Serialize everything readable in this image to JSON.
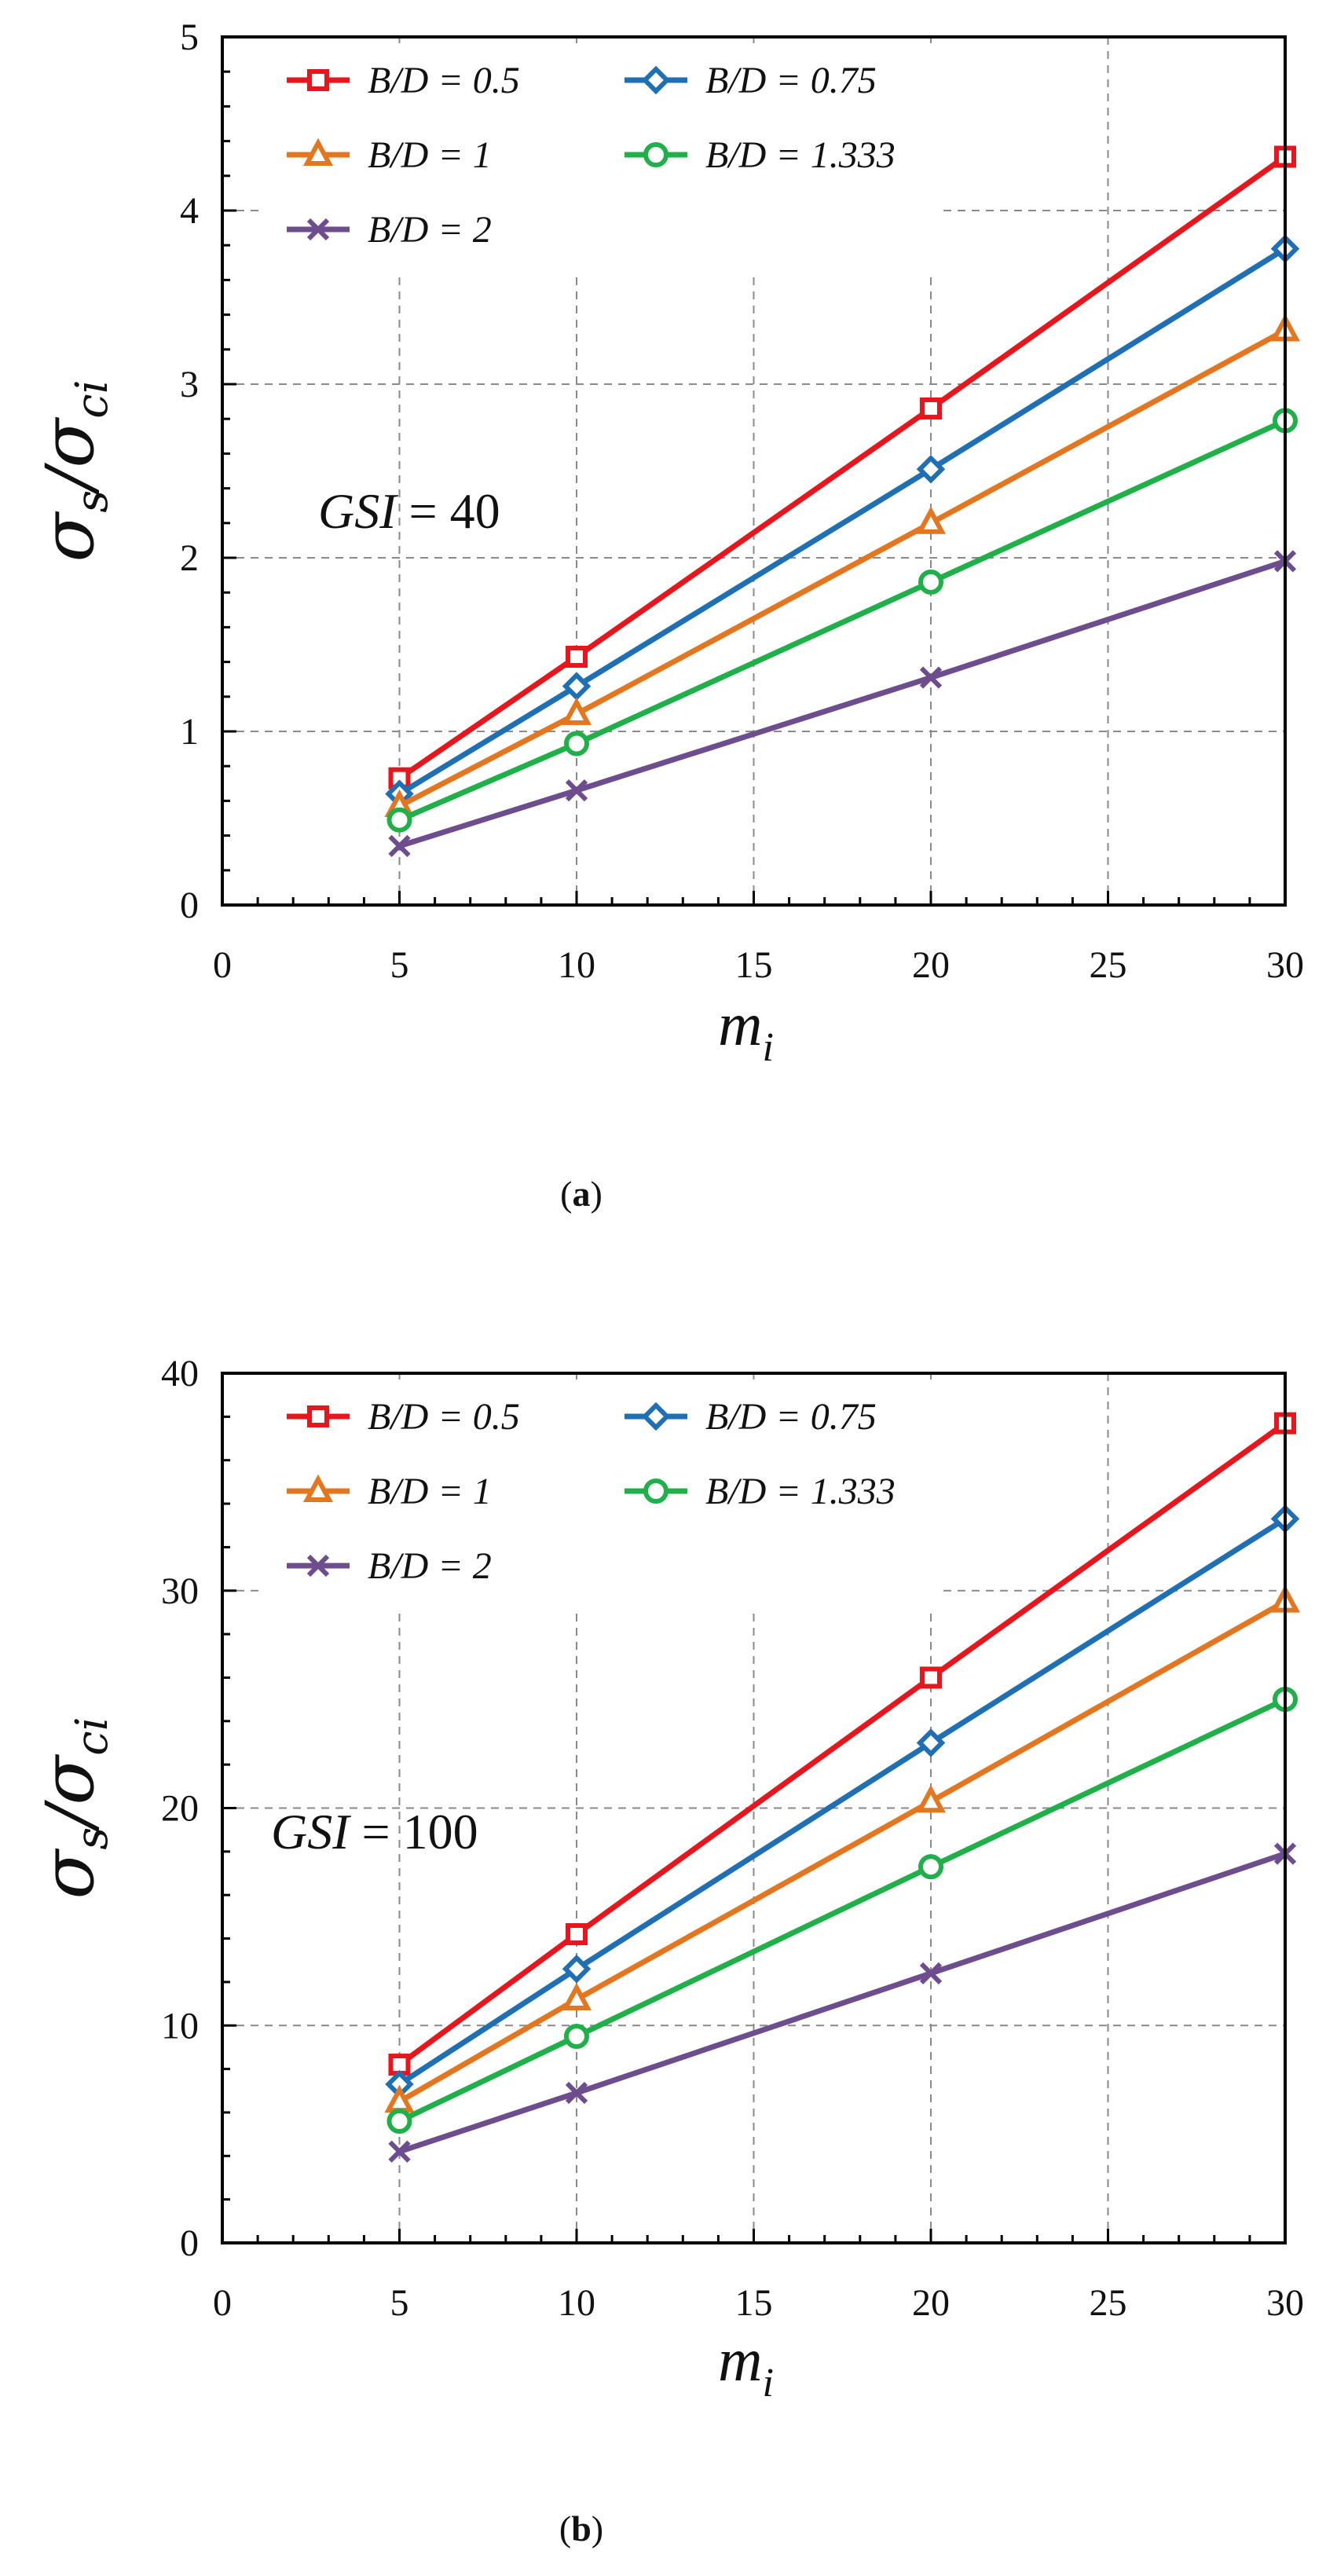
{
  "chart_data": [
    {
      "type": "line",
      "panel": "a",
      "caption": "a",
      "annotation": {
        "name": "GSI",
        "eq": " = ",
        "value": "40"
      },
      "xlabel": {
        "base": "m",
        "sub": "i"
      },
      "ylabel": {
        "top": "σ",
        "top_sub": "s",
        "bottom": "σ",
        "bottom_sub": "ci"
      },
      "xlim": [
        0,
        30
      ],
      "ylim": [
        0,
        5
      ],
      "x_ticks": [
        0,
        5,
        10,
        15,
        20,
        25,
        30
      ],
      "y_ticks": [
        0,
        1,
        2,
        3,
        4,
        5
      ],
      "x": [
        5,
        10,
        20,
        30
      ],
      "series": [
        {
          "name": "B/D = 0.5",
          "color": "#e8161c",
          "marker": "square",
          "values": [
            0.73,
            1.43,
            2.86,
            4.31
          ]
        },
        {
          "name": "B/D = 0.75",
          "color": "#1f6fb5",
          "marker": "diamond",
          "values": [
            0.64,
            1.26,
            2.51,
            3.78
          ]
        },
        {
          "name": "B/D = 1",
          "color": "#e4761f",
          "marker": "triangle",
          "values": [
            0.57,
            1.1,
            2.2,
            3.31
          ]
        },
        {
          "name": "B/D = 1.333",
          "color": "#1fb04a",
          "marker": "circle",
          "values": [
            0.49,
            0.93,
            1.86,
            2.79
          ]
        },
        {
          "name": "B/D = 2",
          "color": "#6d4d8e",
          "marker": "x",
          "values": [
            0.34,
            0.66,
            1.31,
            1.98
          ]
        }
      ]
    },
    {
      "type": "line",
      "panel": "b",
      "caption": "b",
      "annotation": {
        "name": "GSI",
        "eq": " = ",
        "value": "100"
      },
      "xlabel": {
        "base": "m",
        "sub": "i"
      },
      "ylabel": {
        "top": "σ",
        "top_sub": "s",
        "bottom": "σ",
        "bottom_sub": "ci"
      },
      "xlim": [
        0,
        30
      ],
      "ylim": [
        0,
        40
      ],
      "x_ticks": [
        0,
        5,
        10,
        15,
        20,
        25,
        30
      ],
      "y_ticks": [
        0,
        10,
        20,
        30,
        40
      ],
      "x": [
        5,
        10,
        20,
        30
      ],
      "series": [
        {
          "name": "B/D = 0.5",
          "color": "#e8161c",
          "marker": "square",
          "values": [
            8.2,
            14.2,
            26.0,
            37.7
          ]
        },
        {
          "name": "B/D = 0.75",
          "color": "#1f6fb5",
          "marker": "diamond",
          "values": [
            7.3,
            12.6,
            23.0,
            33.3
          ]
        },
        {
          "name": "B/D = 1",
          "color": "#e4761f",
          "marker": "triangle",
          "values": [
            6.5,
            11.2,
            20.3,
            29.5
          ]
        },
        {
          "name": "B/D = 1.333",
          "color": "#1fb04a",
          "marker": "circle",
          "values": [
            5.6,
            9.5,
            17.3,
            25.0
          ]
        },
        {
          "name": "B/D = 2",
          "color": "#6d4d8e",
          "marker": "x",
          "values": [
            4.2,
            6.9,
            12.4,
            17.9
          ]
        }
      ]
    }
  ]
}
